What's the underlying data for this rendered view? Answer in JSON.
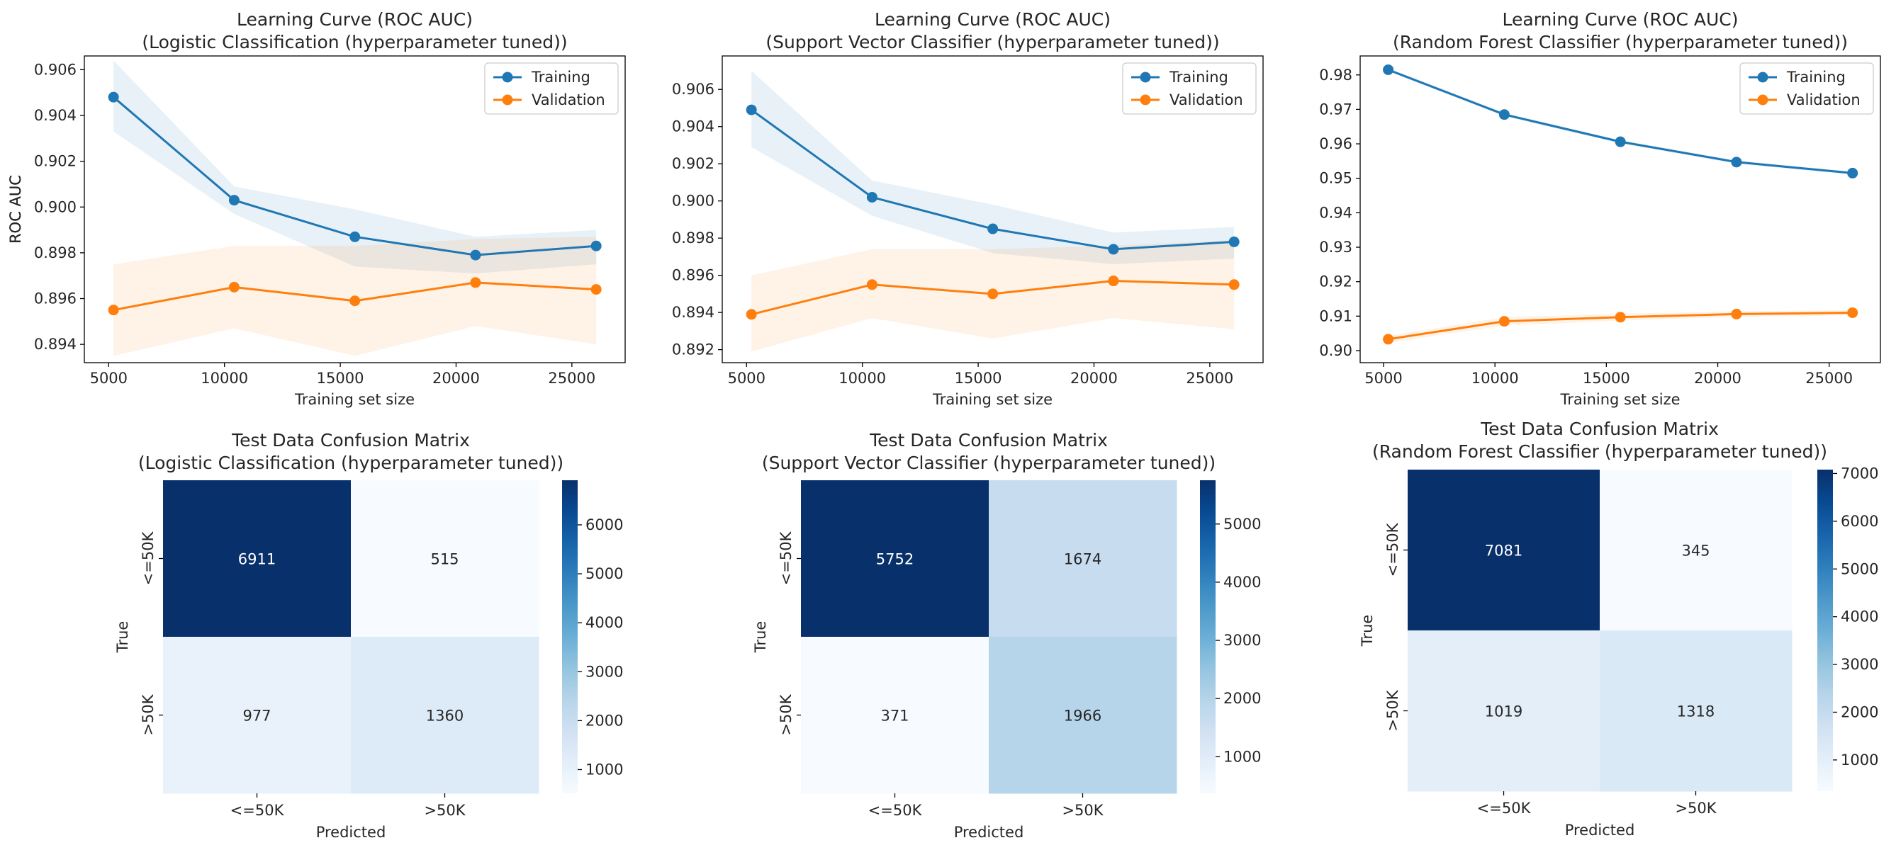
{
  "colors": {
    "training": "#1f77b4",
    "validation": "#ff7f0e",
    "blues": [
      "#f7fbff",
      "#deebf7",
      "#c6dbef",
      "#9ecae1",
      "#6baed6",
      "#4292c6",
      "#2171b5",
      "#08519c",
      "#08306b"
    ],
    "text_dark": "#262626",
    "text_light": "#ffffff"
  },
  "chart_data": [
    {
      "type": "line",
      "title": "Learning Curve (ROC AUC)\n(Logistic Classification (hyperparameter tuned))",
      "xlabel": "Training set size",
      "ylabel": "ROC AUC",
      "x": [
        5210,
        10420,
        15630,
        20840,
        26050
      ],
      "xlim": [
        3950,
        27300
      ],
      "ylim": [
        0.8932,
        0.9066
      ],
      "xticks": [
        5000,
        10000,
        15000,
        20000,
        25000
      ],
      "yticks": [
        0.894,
        0.896,
        0.898,
        0.9,
        0.902,
        0.904,
        0.906
      ],
      "ytick_decimals": 3,
      "legend": "top-right",
      "grid": false,
      "series": [
        {
          "name": "Training",
          "values": [
            0.9048,
            0.9003,
            0.8987,
            0.8979,
            0.8983
          ],
          "lower": [
            0.9033,
            0.8997,
            0.8974,
            0.8971,
            0.8975
          ],
          "upper": [
            0.9064,
            0.9009,
            0.8999,
            0.8987,
            0.899
          ]
        },
        {
          "name": "Validation",
          "values": [
            0.8955,
            0.8965,
            0.8959,
            0.8967,
            0.8964
          ],
          "lower": [
            0.8935,
            0.8947,
            0.8935,
            0.8948,
            0.894
          ],
          "upper": [
            0.8975,
            0.8983,
            0.8983,
            0.8986,
            0.8987
          ]
        }
      ]
    },
    {
      "type": "line",
      "title": "Learning Curve (ROC AUC)\n(Support Vector Classifier (hyperparameter tuned))",
      "xlabel": "Training set size",
      "ylabel": "ROC AUC",
      "x": [
        5210,
        10420,
        15630,
        20840,
        26050
      ],
      "xlim": [
        3950,
        27300
      ],
      "ylim": [
        0.8913,
        0.9078
      ],
      "xticks": [
        5000,
        10000,
        15000,
        20000,
        25000
      ],
      "yticks": [
        0.892,
        0.894,
        0.896,
        0.898,
        0.9,
        0.902,
        0.904,
        0.906
      ],
      "ytick_decimals": 3,
      "legend": "top-right",
      "grid": false,
      "series": [
        {
          "name": "Training",
          "values": [
            0.9049,
            0.9002,
            0.8985,
            0.8974,
            0.8978
          ],
          "lower": [
            0.9029,
            0.8992,
            0.8972,
            0.8966,
            0.8969
          ],
          "upper": [
            0.907,
            0.9011,
            0.8998,
            0.8983,
            0.8986
          ]
        },
        {
          "name": "Validation",
          "values": [
            0.8939,
            0.8955,
            0.895,
            0.8957,
            0.8955
          ],
          "lower": [
            0.8919,
            0.8937,
            0.8926,
            0.8937,
            0.8931
          ],
          "upper": [
            0.896,
            0.8974,
            0.8974,
            0.8976,
            0.8979
          ]
        }
      ]
    },
    {
      "type": "line",
      "title": "Learning Curve (ROC AUC)\n(Random Forest Classifier (hyperparameter tuned))",
      "xlabel": "Training set size",
      "ylabel": "ROC AUC",
      "x": [
        5210,
        10420,
        15630,
        20840,
        26050
      ],
      "xlim": [
        3950,
        27300
      ],
      "ylim": [
        0.8965,
        0.9855
      ],
      "xticks": [
        5000,
        10000,
        15000,
        20000,
        25000
      ],
      "yticks": [
        0.9,
        0.91,
        0.92,
        0.93,
        0.94,
        0.95,
        0.96,
        0.97,
        0.98
      ],
      "ytick_decimals": 2,
      "legend": "top-right",
      "grid": false,
      "series": [
        {
          "name": "Training",
          "values": [
            0.9815,
            0.9685,
            0.9606,
            0.9547,
            0.9515
          ],
          "lower": [
            0.981,
            0.968,
            0.9601,
            0.9542,
            0.951
          ],
          "upper": [
            0.982,
            0.969,
            0.9611,
            0.9552,
            0.952
          ]
        },
        {
          "name": "Validation",
          "values": [
            0.9033,
            0.9085,
            0.9097,
            0.9106,
            0.911
          ],
          "lower": [
            0.9023,
            0.9073,
            0.9087,
            0.9098,
            0.9102
          ],
          "upper": [
            0.9043,
            0.9097,
            0.9107,
            0.9114,
            0.9118
          ]
        }
      ]
    },
    {
      "type": "heatmap",
      "title": "Test Data Confusion Matrix\n(Logistic Classification (hyperparameter tuned))",
      "xlabel": "Predicted",
      "ylabel": "True",
      "categories": [
        "<=50K",
        ">50K"
      ],
      "values": [
        [
          6911,
          515
        ],
        [
          977,
          1360
        ]
      ],
      "colorbar_ticks": [
        1000,
        2000,
        3000,
        4000,
        5000,
        6000
      ],
      "colormap": "Blues"
    },
    {
      "type": "heatmap",
      "title": "Test Data Confusion Matrix\n(Support Vector Classifier (hyperparameter tuned))",
      "xlabel": "Predicted",
      "ylabel": "True",
      "categories": [
        "<=50K",
        ">50K"
      ],
      "values": [
        [
          5752,
          1674
        ],
        [
          371,
          1966
        ]
      ],
      "colorbar_ticks": [
        1000,
        2000,
        3000,
        4000,
        5000
      ],
      "colormap": "Blues"
    },
    {
      "type": "heatmap",
      "title": "Test Data Confusion Matrix\n(Random Forest Classifier (hyperparameter tuned))",
      "xlabel": "Predicted",
      "ylabel": "True",
      "categories": [
        "<=50K",
        ">50K"
      ],
      "values": [
        [
          7081,
          345
        ],
        [
          1019,
          1318
        ]
      ],
      "colorbar_ticks": [
        1000,
        2000,
        3000,
        4000,
        5000,
        6000,
        7000
      ],
      "colormap": "Blues"
    }
  ]
}
